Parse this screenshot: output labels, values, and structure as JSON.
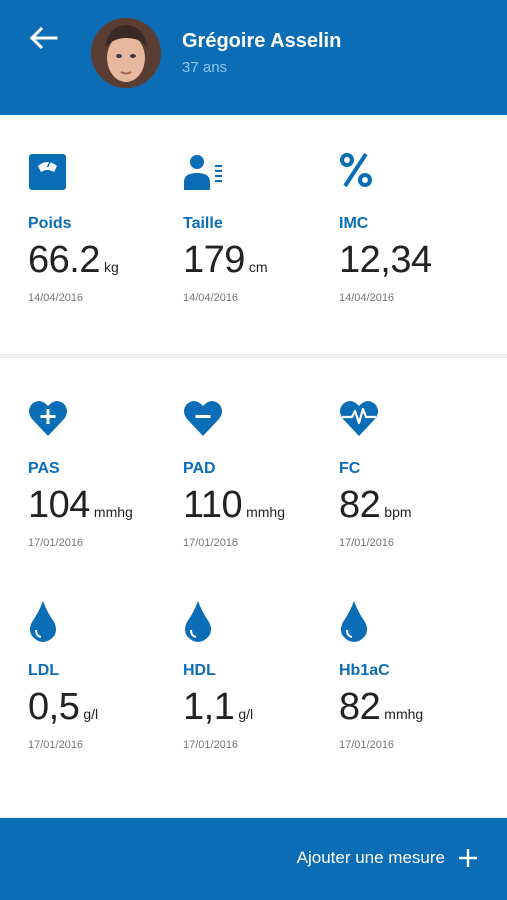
{
  "header": {
    "user_name": "Grégoire Asselin",
    "user_age": "37 ans",
    "back_icon": "arrow-left-icon",
    "avatar": "user-avatar-photo"
  },
  "body_metrics": [
    {
      "icon": "scale-icon",
      "label": "Poids",
      "value": "66.2",
      "unit": "kg",
      "date": "14/04/2016"
    },
    {
      "icon": "person-height-icon",
      "label": "Taille",
      "value": "179",
      "unit": "cm",
      "date": "14/04/2016"
    },
    {
      "icon": "percent-icon",
      "label": "IMC",
      "value": "12,34",
      "unit": "",
      "date": "14/04/2016"
    }
  ],
  "cardio_metrics": [
    {
      "icon": "heart-plus-icon",
      "label": "PAS",
      "value": "104",
      "unit": "mmhg",
      "date": "17/01/2016"
    },
    {
      "icon": "heart-minus-icon",
      "label": "PAD",
      "value": "110",
      "unit": "mmhg",
      "date": "17/01/2016"
    },
    {
      "icon": "heart-pulse-icon",
      "label": "FC",
      "value": "82",
      "unit": "bpm",
      "date": "17/01/2016"
    }
  ],
  "blood_metrics": [
    {
      "icon": "drop-icon",
      "label": "LDL",
      "value": "0,5",
      "unit": "g/l",
      "date": "17/01/2016"
    },
    {
      "icon": "drop-icon",
      "label": "HDL",
      "value": "1,1",
      "unit": "g/l",
      "date": "17/01/2016"
    },
    {
      "icon": "drop-icon",
      "label": "Hb1aC",
      "value": "82",
      "unit": "mmhg",
      "date": "17/01/2016"
    }
  ],
  "footer": {
    "add_label": "Ajouter une mesure",
    "add_icon": "plus-icon"
  },
  "colors": {
    "primary": "#0b6db6",
    "label": "#0b6db6",
    "value_text": "#222222",
    "date_text": "#757575",
    "background": "#f0f0f0"
  }
}
